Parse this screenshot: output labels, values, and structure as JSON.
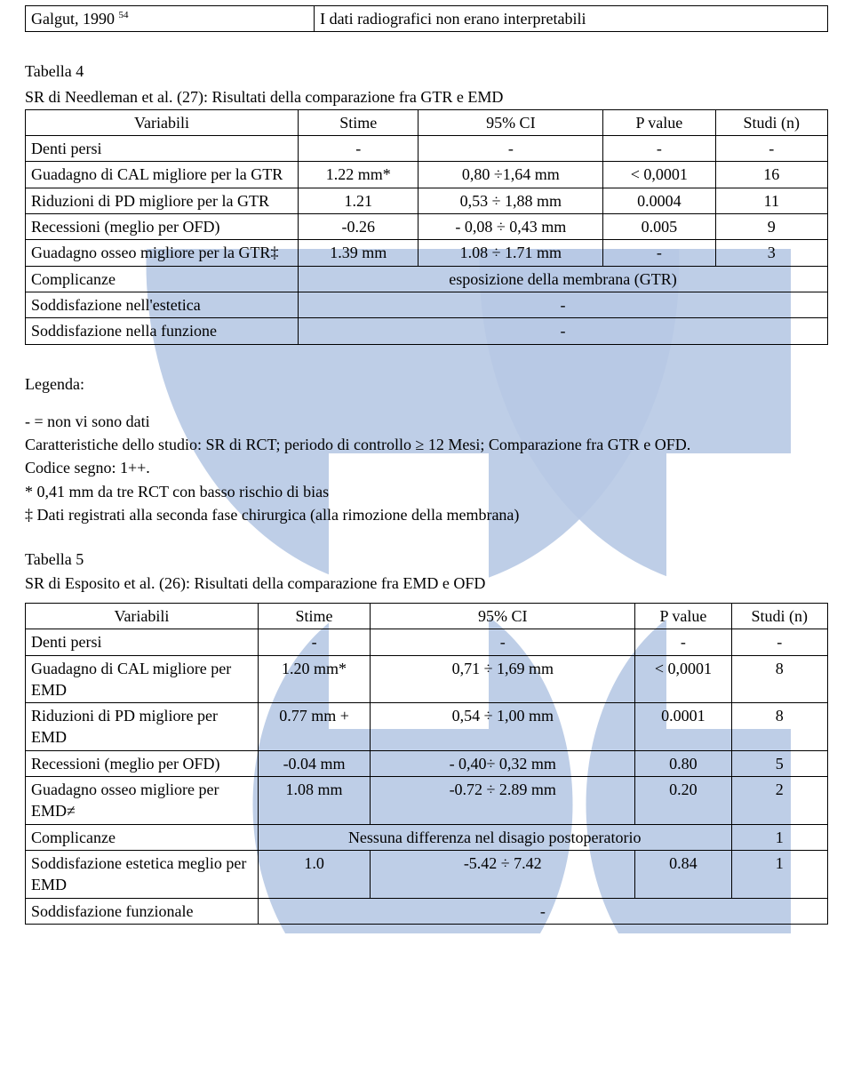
{
  "top_row": {
    "a": "Galgut, 1990",
    "a_sup": "54",
    "b": "I dati radiografici non erano interpretabili"
  },
  "t4": {
    "caption1": "Tabella 4",
    "caption2": "SR di Needleman et al. (27): Risultati della comparazione fra GTR e EMD",
    "head": [
      "Variabili",
      "Stime",
      "95% CI",
      "P value",
      "Studi (n)"
    ],
    "rows": [
      {
        "v": "Denti persi",
        "s": "-",
        "c": "-",
        "p": "-",
        "n": "-"
      },
      {
        "v": "Guadagno di CAL migliore per la GTR",
        "s": "1.22 mm*",
        "c": "0,80 ÷1,64 mm",
        "p": "< 0,0001",
        "n": "16"
      },
      {
        "v": "Riduzioni di PD migliore per la GTR",
        "s": "1.21",
        "c": "0,53 ÷ 1,88 mm",
        "p": "0.0004",
        "n": "11"
      },
      {
        "v": "Recessioni (meglio per OFD)",
        "s": "-0.26",
        "c": "- 0,08 ÷ 0,43 mm",
        "p": "0.005",
        "n": "9"
      },
      {
        "v": "Guadagno osseo migliore per la GTR‡",
        "s": "1.39 mm",
        "c": "1.08 ÷ 1.71 mm",
        "p": "-",
        "n": "3"
      },
      {
        "v": "Complicanze",
        "full": "esposizione della membrana (GTR)"
      },
      {
        "v": "Soddisfazione nell'estetica",
        "full": "-"
      },
      {
        "v": "Soddisfazione nella funzione",
        "full": "-"
      }
    ]
  },
  "legend": {
    "title": "Legenda:",
    "lines": [
      "-  =  non vi sono dati",
      "Caratteristiche dello studio: SR di RCT; periodo di controllo ≥ 12 Mesi; Comparazione fra GTR e OFD.",
      "Codice segno: 1++.",
      "* 0,41 mm da tre RCT con basso rischio di bias",
      "‡ Dati registrati alla seconda fase chirurgica (alla rimozione della membrana)"
    ]
  },
  "t5": {
    "caption1": "Tabella 5",
    "caption2": "SR di Esposito et al. (26): Risultati della comparazione fra EMD e OFD",
    "head": [
      "Variabili",
      "Stime",
      "95% CI",
      "P value",
      "Studi (n)"
    ],
    "rows": [
      {
        "v": "Denti persi",
        "s": "-",
        "c": "-",
        "p": "-",
        "n": "-"
      },
      {
        "v": "Guadagno di CAL migliore per EMD",
        "s": "1.20 mm*",
        "c": "0,71 ÷ 1,69 mm",
        "p": "< 0,0001",
        "n": "8"
      },
      {
        "v": "Riduzioni di PD migliore per EMD",
        "s": "0.77 mm +",
        "c": "0,54 ÷ 1,00 mm",
        "p": "0.0001",
        "n": "8"
      },
      {
        "v": "Recessioni (meglio per OFD)",
        "s": "-0.04 mm",
        "c": "- 0,40÷ 0,32 mm",
        "p": "0.80",
        "n": "5"
      },
      {
        "v": "Guadagno osseo migliore per EMD≠",
        "s": "1.08 mm",
        "c": "-0.72 ÷ 2.89 mm",
        "p": "0.20",
        "n": "2"
      },
      {
        "v": "Complicanze",
        "wide": "Nessuna differenza nel disagio postoperatorio",
        "n": "1"
      },
      {
        "v": "Soddisfazione estetica meglio per EMD",
        "s": "1.0",
        "c": "-5.42 ÷ 7.42",
        "p": "0.84",
        "n": "1"
      },
      {
        "v": "Soddisfazione funzionale",
        "full": "-"
      }
    ]
  },
  "colwidths": {
    "t4": [
      "34%",
      "15%",
      "23%",
      "14%",
      "14%"
    ],
    "t5": [
      "29%",
      "14%",
      "33%",
      "12%",
      "12%"
    ]
  }
}
